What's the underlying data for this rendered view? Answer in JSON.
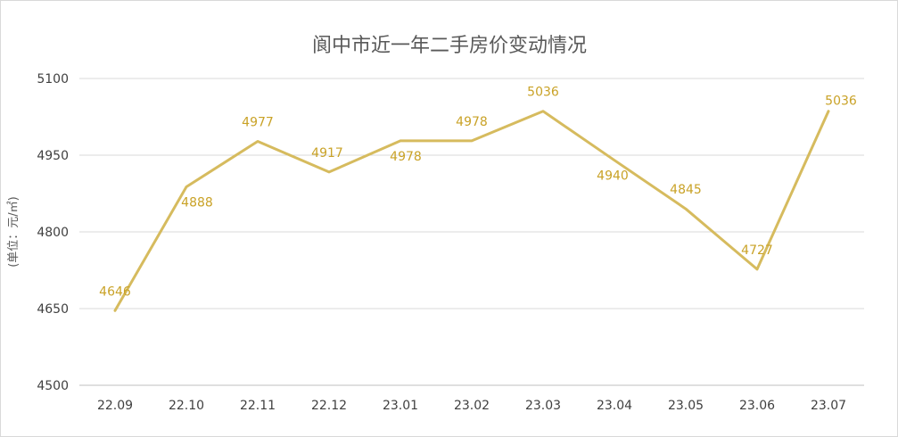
{
  "chart_data": {
    "type": "line",
    "title": "阆中市近一年二手房价变动情况",
    "xlabel": "",
    "ylabel": "(单位：元/㎡)",
    "categories": [
      "22.09",
      "22.10",
      "22.11",
      "22.12",
      "23.01",
      "23.02",
      "23.03",
      "23.04",
      "23.05",
      "23.06",
      "23.07"
    ],
    "series": [
      {
        "values": [
          4646,
          4888,
          4977,
          4917,
          4978,
          4978,
          5036,
          4940,
          4845,
          4727,
          5036
        ]
      }
    ],
    "ylim": [
      4500,
      5100
    ],
    "yticks": [
      4500,
      4650,
      4800,
      4950,
      5100
    ],
    "grid": true,
    "legend": "none",
    "line_color": "#d6bb5e",
    "label_color": "#c9a227"
  }
}
